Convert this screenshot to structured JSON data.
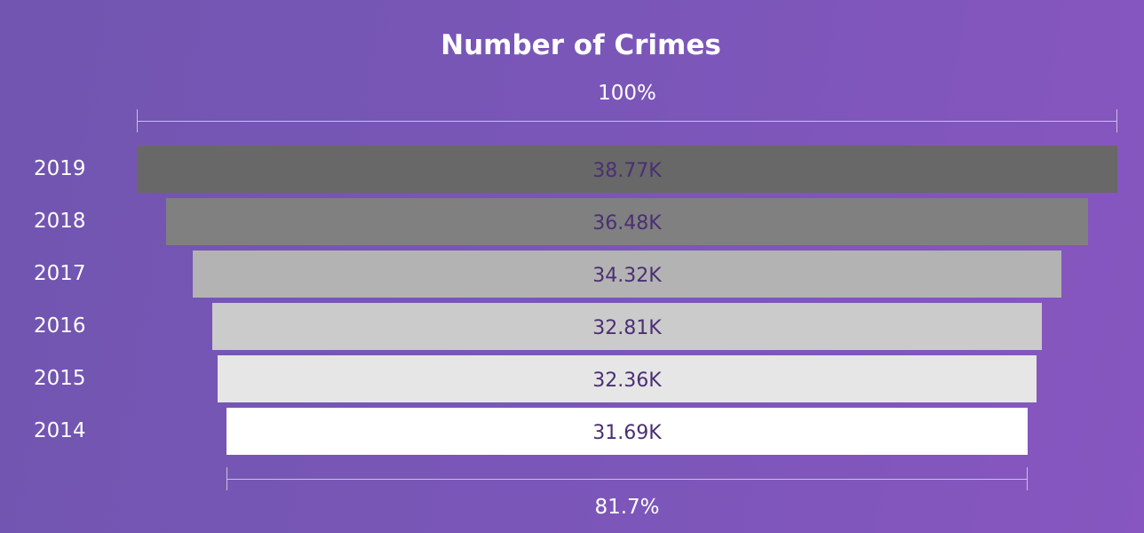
{
  "chart_data": {
    "type": "funnel",
    "title": "Number of Crimes",
    "categories": [
      "2019",
      "2018",
      "2017",
      "2016",
      "2015",
      "2014"
    ],
    "values": [
      38770,
      36480,
      34320,
      32810,
      32360,
      31690
    ],
    "value_labels": [
      "38.77K",
      "36.48K",
      "34.32K",
      "32.81K",
      "32.36K",
      "31.69K"
    ],
    "colors": [
      "#686868",
      "#808080",
      "#b3b3b3",
      "#cbcbcb",
      "#e6e6e6",
      "#ffffff"
    ],
    "top_percent_label": "100%",
    "bottom_percent_label": "81.7%"
  }
}
